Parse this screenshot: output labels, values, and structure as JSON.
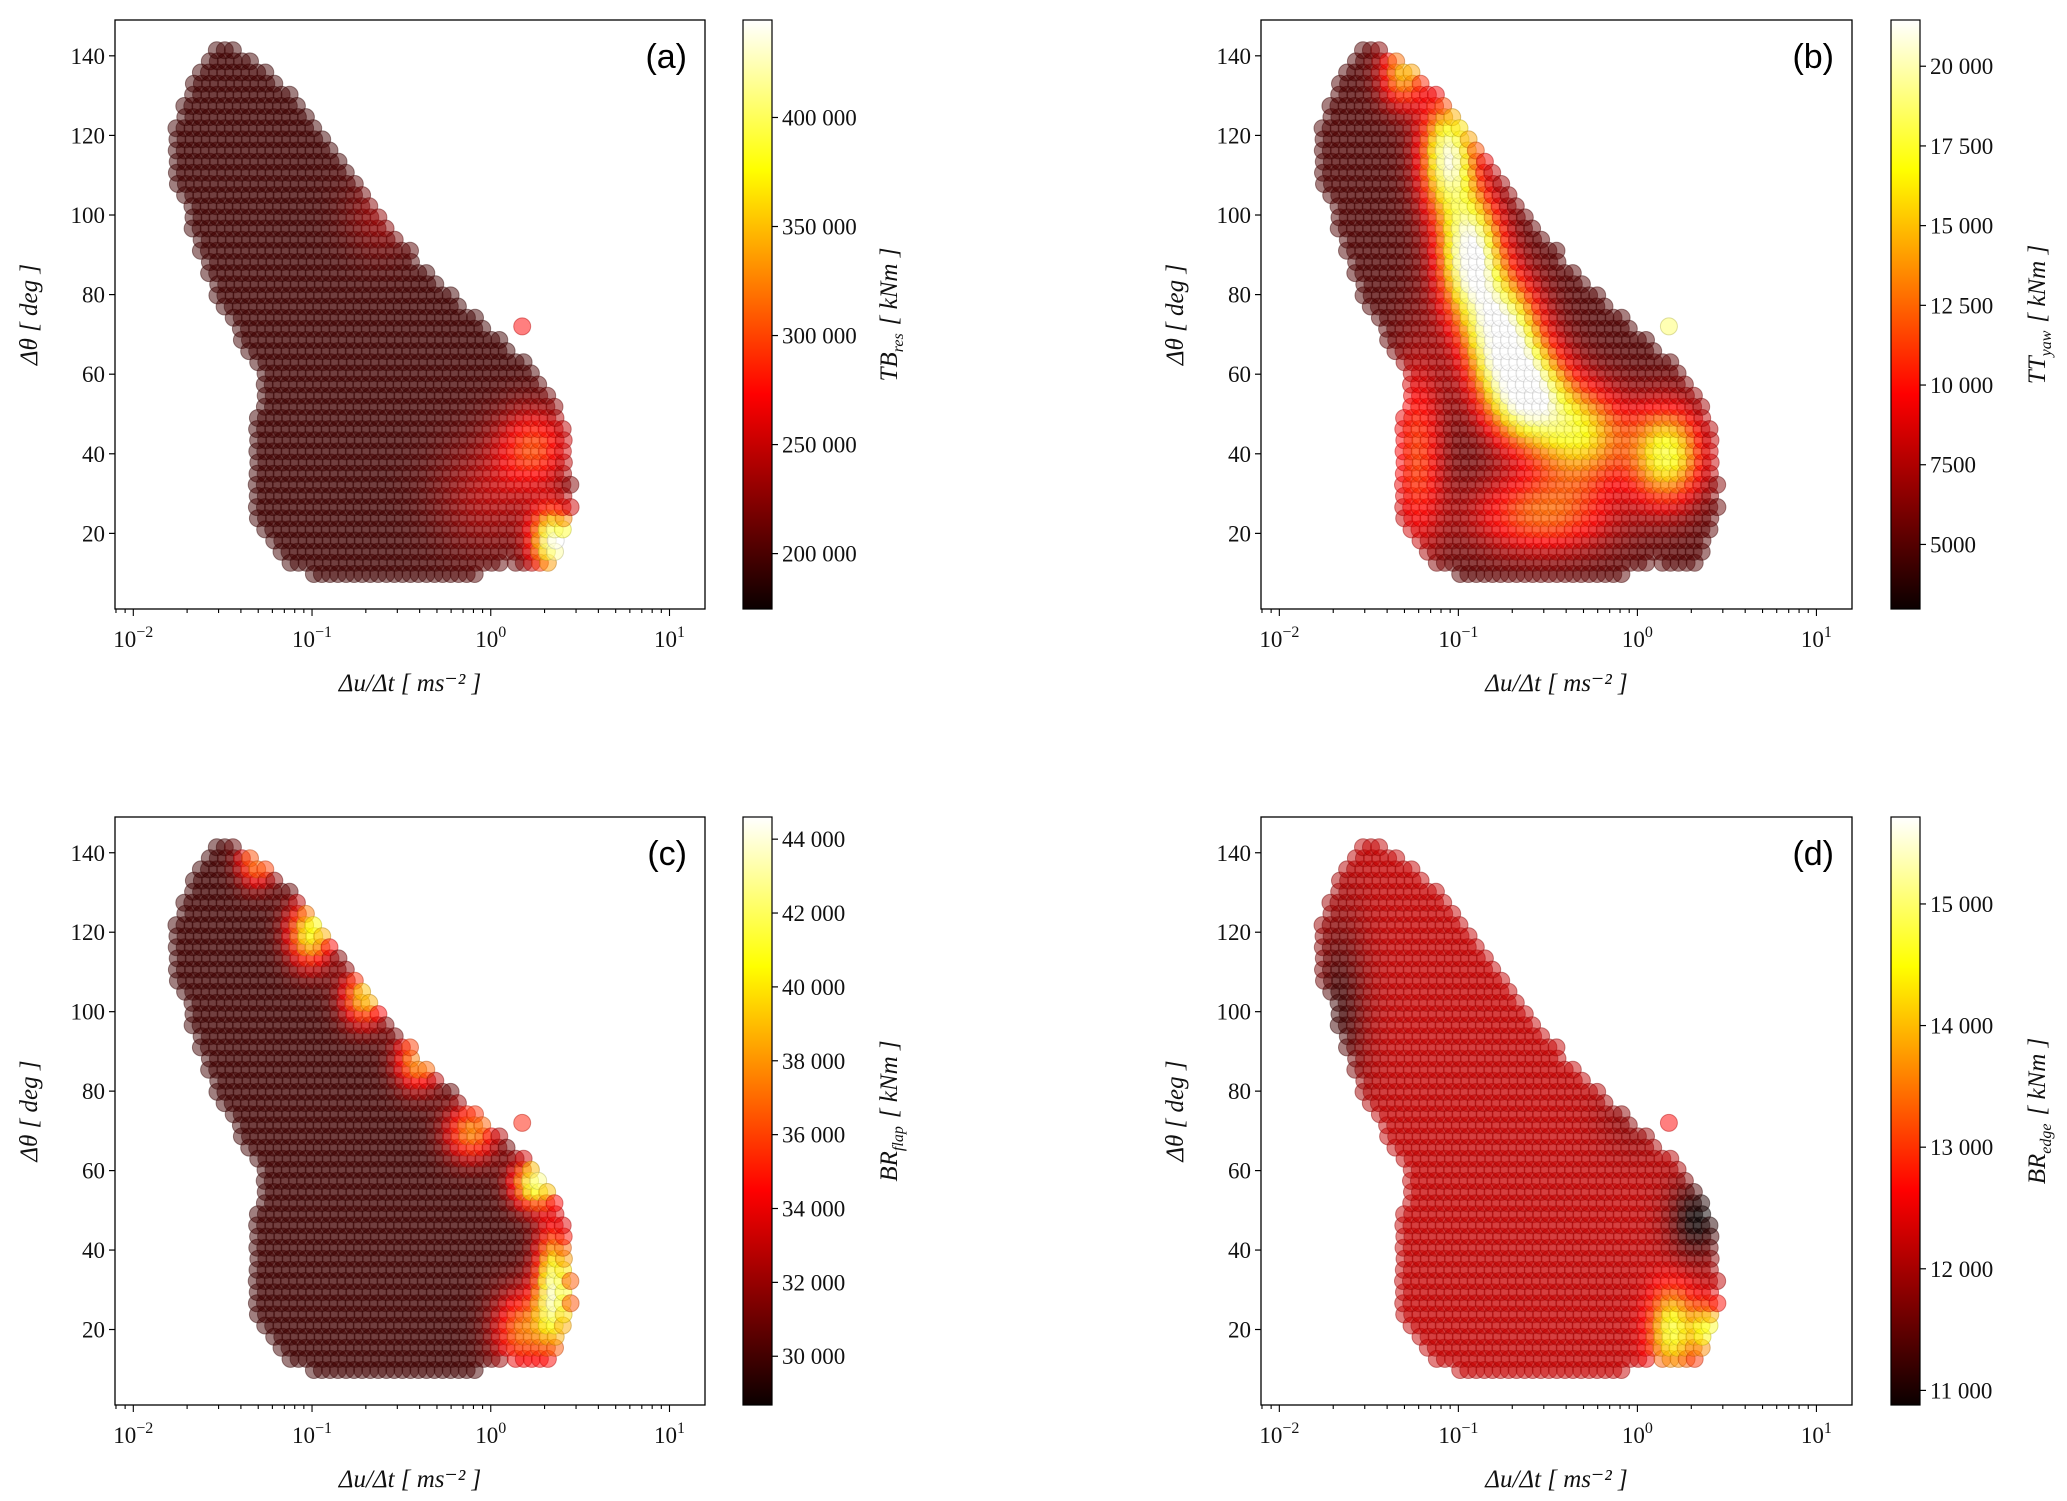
{
  "chart_data": [
    {
      "panel": "(a)",
      "type": "scatter",
      "xlabel": "Δu/Δt [ ms⁻² ]",
      "ylabel": "Δθ [ deg ]",
      "xscale": "log",
      "xlim": [
        0.0079,
        15.8
      ],
      "ylim": [
        1,
        149
      ],
      "xticks": [
        {
          "value": 0.01,
          "base": "10",
          "exp": "−2"
        },
        {
          "value": 0.1,
          "base": "10",
          "exp": "−1"
        },
        {
          "value": 1,
          "base": "10",
          "exp": "0"
        },
        {
          "value": 10,
          "base": "10",
          "exp": "1"
        }
      ],
      "yticks": [
        20,
        40,
        60,
        80,
        100,
        120,
        140
      ],
      "colorbar": {
        "label_main": "TB",
        "label_sub": "res",
        "label_unit": "[ kNm ]",
        "cmap": "hot",
        "range": [
          174600,
          444700
        ],
        "ticks": [
          {
            "value": 200000,
            "label": "200 000"
          },
          {
            "value": 250000,
            "label": "250 000"
          },
          {
            "value": 300000,
            "label": "300 000"
          },
          {
            "value": 350000,
            "label": "350 000"
          },
          {
            "value": 400000,
            "label": "400 000"
          }
        ]
      },
      "base_level": 0.08,
      "hotspots": [
        {
          "x": 2.3,
          "y": 18,
          "level": 0.9,
          "sx": 0.12,
          "sy": 8
        },
        {
          "x": 1.8,
          "y": 42,
          "level": 0.35,
          "sx": 0.2,
          "sy": 10
        },
        {
          "x": 1.0,
          "y": 30,
          "level": 0.16,
          "sx": 0.3,
          "sy": 15
        },
        {
          "x": 0.25,
          "y": 100,
          "level": 0.12,
          "sx": 0.2,
          "sy": 10
        }
      ],
      "outlier": {
        "x": 1.5,
        "y": 72,
        "level": 0.35
      }
    },
    {
      "panel": "(b)",
      "type": "scatter",
      "xlabel": "Δu/Δt [ ms⁻² ]",
      "ylabel": "Δθ [ deg ]",
      "xscale": "log",
      "xlim": [
        0.0079,
        15.8
      ],
      "ylim": [
        1,
        149
      ],
      "xticks": [
        {
          "value": 0.01,
          "base": "10",
          "exp": "−2"
        },
        {
          "value": 0.1,
          "base": "10",
          "exp": "−1"
        },
        {
          "value": 1,
          "base": "10",
          "exp": "0"
        },
        {
          "value": 10,
          "base": "10",
          "exp": "1"
        }
      ],
      "yticks": [
        20,
        40,
        60,
        80,
        100,
        120,
        140
      ],
      "colorbar": {
        "label_main": "TT",
        "label_sub": "yaw",
        "label_unit": "[ kNm ]",
        "cmap": "hot",
        "range": [
          2975,
          21450
        ],
        "ticks": [
          {
            "value": 5000,
            "label": "5000"
          },
          {
            "value": 7500,
            "label": "7500"
          },
          {
            "value": 10000,
            "label": "10 000"
          },
          {
            "value": 12500,
            "label": "12 500"
          },
          {
            "value": 15000,
            "label": "15 000"
          },
          {
            "value": 17500,
            "label": "17 500"
          },
          {
            "value": 20000,
            "label": "20 000"
          }
        ]
      },
      "base_level": 0.1,
      "hotspots": [
        {
          "x": 0.05,
          "y": 136,
          "level": 0.55,
          "sx": 0.12,
          "sy": 8
        },
        {
          "x": 0.09,
          "y": 115,
          "level": 0.85,
          "sx": 0.15,
          "sy": 14
        },
        {
          "x": 0.12,
          "y": 90,
          "level": 0.95,
          "sx": 0.17,
          "sy": 15
        },
        {
          "x": 0.18,
          "y": 70,
          "level": 0.9,
          "sx": 0.2,
          "sy": 14
        },
        {
          "x": 0.25,
          "y": 55,
          "level": 0.85,
          "sx": 0.22,
          "sy": 12
        },
        {
          "x": 0.5,
          "y": 45,
          "level": 0.6,
          "sx": 0.25,
          "sy": 12
        },
        {
          "x": 1.5,
          "y": 40,
          "level": 0.7,
          "sx": 0.2,
          "sy": 12
        },
        {
          "x": 0.06,
          "y": 40,
          "level": 0.35,
          "sx": 0.15,
          "sy": 25
        },
        {
          "x": 0.3,
          "y": 25,
          "level": 0.4,
          "sx": 0.4,
          "sy": 10
        }
      ],
      "outlier": {
        "x": 1.5,
        "y": 72,
        "level": 0.85
      }
    },
    {
      "panel": "(c)",
      "type": "scatter",
      "xlabel": "Δu/Δt [ ms⁻² ]",
      "ylabel": "Δθ [ deg ]",
      "xscale": "log",
      "xlim": [
        0.0079,
        15.8
      ],
      "ylim": [
        1,
        149
      ],
      "xticks": [
        {
          "value": 0.01,
          "base": "10",
          "exp": "−2"
        },
        {
          "value": 0.1,
          "base": "10",
          "exp": "−1"
        },
        {
          "value": 1,
          "base": "10",
          "exp": "0"
        },
        {
          "value": 10,
          "base": "10",
          "exp": "1"
        }
      ],
      "yticks": [
        20,
        40,
        60,
        80,
        100,
        120,
        140
      ],
      "colorbar": {
        "label_main": "BR",
        "label_sub": "flap",
        "label_unit": "[ kNm ]",
        "cmap": "hot",
        "range": [
          28680,
          44600
        ],
        "ticks": [
          {
            "value": 30000,
            "label": "30 000"
          },
          {
            "value": 32000,
            "label": "32 000"
          },
          {
            "value": 34000,
            "label": "34 000"
          },
          {
            "value": 36000,
            "label": "36 000"
          },
          {
            "value": 38000,
            "label": "38 000"
          },
          {
            "value": 40000,
            "label": "40 000"
          },
          {
            "value": 42000,
            "label": "42 000"
          },
          {
            "value": 44000,
            "label": "44 000"
          }
        ]
      },
      "base_level": 0.08,
      "hotspots": [
        {
          "x": 0.05,
          "y": 138,
          "level": 0.5,
          "sx": 0.1,
          "sy": 6
        },
        {
          "x": 0.1,
          "y": 120,
          "level": 0.7,
          "sx": 0.12,
          "sy": 8
        },
        {
          "x": 0.2,
          "y": 104,
          "level": 0.6,
          "sx": 0.12,
          "sy": 7
        },
        {
          "x": 0.4,
          "y": 88,
          "level": 0.55,
          "sx": 0.12,
          "sy": 7
        },
        {
          "x": 0.8,
          "y": 70,
          "level": 0.5,
          "sx": 0.14,
          "sy": 7
        },
        {
          "x": 1.8,
          "y": 57,
          "level": 0.8,
          "sx": 0.12,
          "sy": 6
        },
        {
          "x": 2.3,
          "y": 30,
          "level": 0.85,
          "sx": 0.1,
          "sy": 15
        },
        {
          "x": 1.5,
          "y": 20,
          "level": 0.45,
          "sx": 0.15,
          "sy": 10
        }
      ],
      "outlier": {
        "x": 1.5,
        "y": 72,
        "level": 0.4
      }
    },
    {
      "panel": "(d)",
      "type": "scatter",
      "xlabel": "Δu/Δt [ ms⁻² ]",
      "ylabel": "Δθ [ deg ]",
      "xscale": "log",
      "xlim": [
        0.0079,
        15.8
      ],
      "ylim": [
        1,
        149
      ],
      "xticks": [
        {
          "value": 0.01,
          "base": "10",
          "exp": "−2"
        },
        {
          "value": 0.1,
          "base": "10",
          "exp": "−1"
        },
        {
          "value": 1,
          "base": "10",
          "exp": "0"
        },
        {
          "value": 10,
          "base": "10",
          "exp": "1"
        }
      ],
      "yticks": [
        20,
        40,
        60,
        80,
        100,
        120,
        140
      ],
      "colorbar": {
        "label_main": "BR",
        "label_sub": "edge",
        "label_unit": "[ kNm ]",
        "cmap": "hot",
        "range": [
          10880,
          15715
        ],
        "ticks": [
          {
            "value": 11000,
            "label": "11 000"
          },
          {
            "value": 12000,
            "label": "12 000"
          },
          {
            "value": 13000,
            "label": "13 000"
          },
          {
            "value": 14000,
            "label": "14 000"
          },
          {
            "value": 15000,
            "label": "15 000"
          }
        ]
      },
      "base_level": 0.27,
      "hotspots": [
        {
          "x": 1.6,
          "y": 20,
          "level": 0.55,
          "sx": 0.12,
          "sy": 10
        },
        {
          "x": 2.5,
          "y": 20,
          "level": 0.5,
          "sx": 0.08,
          "sy": 6
        },
        {
          "x": 2.2,
          "y": 48,
          "level": -0.28,
          "sx": 0.15,
          "sy": 10
        },
        {
          "x": 0.022,
          "y": 100,
          "level": -0.2,
          "sx": 0.15,
          "sy": 25
        },
        {
          "x": 1.0,
          "y": 75,
          "level": -0.1,
          "sx": 0.2,
          "sy": 10
        }
      ],
      "outlier": {
        "x": 1.5,
        "y": 72,
        "level": 0.35
      }
    }
  ],
  "envelope": [
    [
      0.033,
      144
    ],
    [
      0.06,
      135
    ],
    [
      0.1,
      124
    ],
    [
      0.2,
      105
    ],
    [
      0.4,
      88
    ],
    [
      0.8,
      75
    ],
    [
      1.3,
      66
    ],
    [
      2.0,
      58
    ],
    [
      2.4,
      50
    ],
    [
      2.8,
      40
    ],
    [
      2.8,
      22
    ],
    [
      2.2,
      12
    ],
    [
      1.5,
      10
    ],
    [
      1.3,
      14
    ],
    [
      0.8,
      9
    ],
    [
      0.6,
      8
    ],
    [
      0.3,
      8
    ],
    [
      0.12,
      8
    ],
    [
      0.07,
      12
    ],
    [
      0.05,
      22
    ],
    [
      0.045,
      35
    ],
    [
      0.05,
      50
    ],
    [
      0.052,
      60
    ],
    [
      0.04,
      68
    ],
    [
      0.03,
      78
    ],
    [
      0.022,
      95
    ],
    [
      0.017,
      110
    ],
    [
      0.016,
      118
    ],
    [
      0.02,
      130
    ],
    [
      0.025,
      138
    ]
  ]
}
